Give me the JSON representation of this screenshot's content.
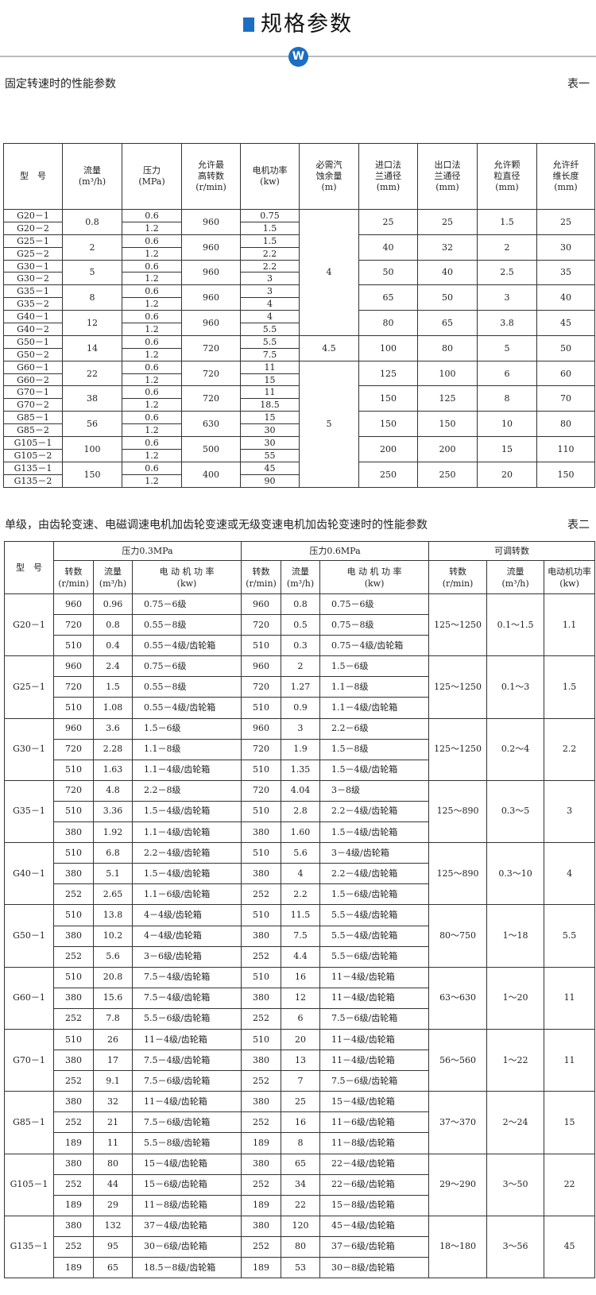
{
  "header": {
    "title": "规格参数",
    "logo": "W",
    "accent": "#1a6fc4"
  },
  "table1": {
    "caption": "固定转速时的性能参数",
    "label": "表一",
    "headers": [
      "型　号",
      "流量\n(m³/h)",
      "压力\n(MPa)",
      "允许最\n高转数\n(r/min)",
      "电机功率\n(kw)",
      "必需汽\n蚀余量\n(m)",
      "进口法\n兰通径\n(mm)",
      "出口法\n兰通径\n(mm)",
      "允许颗\n粒直径\n(mm)",
      "允许纤\n维长度\n(mm)"
    ],
    "groups": [
      {
        "models": [
          "G20－1",
          "G20－2"
        ],
        "flow": "0.8",
        "pressure": [
          "0.6",
          "1.2"
        ],
        "speed": "960",
        "power": [
          "0.75",
          "1.5"
        ],
        "inlet": "25",
        "outlet": "25",
        "particle": "1.5",
        "fiber": "25"
      },
      {
        "models": [
          "G25－1",
          "G25－2"
        ],
        "flow": "2",
        "pressure": [
          "0.6",
          "1.2"
        ],
        "speed": "960",
        "power": [
          "1.5",
          "2.2"
        ],
        "inlet": "40",
        "outlet": "32",
        "particle": "2",
        "fiber": "30"
      },
      {
        "models": [
          "G30－1",
          "G30－2"
        ],
        "flow": "5",
        "pressure": [
          "0.6",
          "1.2"
        ],
        "speed": "960",
        "power": [
          "2.2",
          "3"
        ],
        "inlet": "50",
        "outlet": "40",
        "particle": "2.5",
        "fiber": "35"
      },
      {
        "models": [
          "G35－1",
          "G35－2"
        ],
        "flow": "8",
        "pressure": [
          "0.6",
          "1.2"
        ],
        "speed": "960",
        "power": [
          "3",
          "4"
        ],
        "inlet": "65",
        "outlet": "50",
        "particle": "3",
        "fiber": "40"
      },
      {
        "models": [
          "G40－1",
          "G40－2"
        ],
        "flow": "12",
        "pressure": [
          "0.6",
          "1.2"
        ],
        "speed": "960",
        "power": [
          "4",
          "5.5"
        ],
        "inlet": "80",
        "outlet": "65",
        "particle": "3.8",
        "fiber": "45"
      },
      {
        "models": [
          "G50－1",
          "G50－2"
        ],
        "flow": "14",
        "pressure": [
          "0.6",
          "1.2"
        ],
        "speed": "720",
        "power": [
          "5.5",
          "7.5"
        ],
        "inlet": "100",
        "outlet": "80",
        "particle": "5",
        "fiber": "50"
      },
      {
        "models": [
          "G60－1",
          "G60－2"
        ],
        "flow": "22",
        "pressure": [
          "0.6",
          "1.2"
        ],
        "speed": "720",
        "power": [
          "11",
          "15"
        ],
        "inlet": "125",
        "outlet": "100",
        "particle": "6",
        "fiber": "60"
      },
      {
        "models": [
          "G70－1",
          "G70－2"
        ],
        "flow": "38",
        "pressure": [
          "0.6",
          "1.2"
        ],
        "speed": "720",
        "power": [
          "11",
          "18.5"
        ],
        "inlet": "150",
        "outlet": "125",
        "particle": "8",
        "fiber": "70"
      },
      {
        "models": [
          "G85－1",
          "G85－2"
        ],
        "flow": "56",
        "pressure": [
          "0.6",
          "1.2"
        ],
        "speed": "630",
        "power": [
          "15",
          "30"
        ],
        "inlet": "150",
        "outlet": "150",
        "particle": "10",
        "fiber": "80"
      },
      {
        "models": [
          "G105－1",
          "G105－2"
        ],
        "flow": "100",
        "pressure": [
          "0.6",
          "1.2"
        ],
        "speed": "500",
        "power": [
          "30",
          "55"
        ],
        "inlet": "200",
        "outlet": "200",
        "particle": "15",
        "fiber": "110"
      },
      {
        "models": [
          "G135－1",
          "G135－2"
        ],
        "flow": "150",
        "pressure": [
          "0.6",
          "1.2"
        ],
        "speed": "400",
        "power": [
          "45",
          "90"
        ],
        "inlet": "250",
        "outlet": "250",
        "particle": "20",
        "fiber": "150"
      }
    ],
    "npsh": [
      {
        "value": "4",
        "groups": 5
      },
      {
        "value": "4.5",
        "groups": 1
      },
      {
        "value": "5",
        "groups": 5
      }
    ]
  },
  "table2": {
    "caption": "单级，由齿轮变速、电磁调速电机加齿轮变速或无级变速电机加齿轮变速时的性能参数",
    "label": "表二",
    "model_header": "型　号",
    "group_headers": [
      "压力0.3MPa",
      "压力0.6MPa",
      "可调转数"
    ],
    "sub_headers": [
      "转数\n(r/min)",
      "流量\n(m³/h)",
      "电 动 机 功 率\n(kw)",
      "转数\n(r/min)",
      "流量\n(m³/h)",
      "电 动 机 功 率\n(kw)",
      "转数\n(r/min)",
      "流量\n(m³/h)",
      "电动机功率\n(kw)"
    ],
    "groups": [
      {
        "model": "G20－1",
        "rows": [
          [
            "960",
            "0.96",
            "0.75－6级",
            "960",
            "0.8",
            "0.75－6级"
          ],
          [
            "720",
            "0.8",
            "0.55－8级",
            "720",
            "0.5",
            "0.75－8级"
          ],
          [
            "510",
            "0.4",
            "0.55－4级/齿轮箱",
            "510",
            "0.3",
            "0.75－4级/齿轮箱"
          ]
        ],
        "adj_speed": "125～1250",
        "adj_flow": "0.1～1.5",
        "adj_power": "1.1"
      },
      {
        "model": "G25－1",
        "rows": [
          [
            "960",
            "2.4",
            "0.75－6级",
            "960",
            "2",
            "1.5－6级"
          ],
          [
            "720",
            "1.5",
            "0.55－8级",
            "720",
            "1.27",
            "1.1－8级"
          ],
          [
            "510",
            "1.08",
            "0.55－4级/齿轮箱",
            "510",
            "0.9",
            "1.1－4级/齿轮箱"
          ]
        ],
        "adj_speed": "125～1250",
        "adj_flow": "0.1～3",
        "adj_power": "1.5"
      },
      {
        "model": "G30－1",
        "rows": [
          [
            "960",
            "3.6",
            "1.5－6级",
            "960",
            "3",
            "2.2－6级"
          ],
          [
            "720",
            "2.28",
            "1.1－8级",
            "720",
            "1.9",
            "1.5－8级"
          ],
          [
            "510",
            "1.63",
            "1.1－4级/齿轮箱",
            "510",
            "1.35",
            "1.5－4级/齿轮箱"
          ]
        ],
        "adj_speed": "125～1250",
        "adj_flow": "0.2～4",
        "adj_power": "2.2"
      },
      {
        "model": "G35－1",
        "rows": [
          [
            "720",
            "4.8",
            "2.2－8级",
            "720",
            "4.04",
            "3－8级"
          ],
          [
            "510",
            "3.36",
            "1.5－4级/齿轮箱",
            "510",
            "2.8",
            "2.2－4级/齿轮箱"
          ],
          [
            "380",
            "1.92",
            "1.1－4级/齿轮箱",
            "380",
            "1.60",
            "1.5－4级/齿轮箱"
          ]
        ],
        "adj_speed": "125～890",
        "adj_flow": "0.3～5",
        "adj_power": "3"
      },
      {
        "model": "G40－1",
        "rows": [
          [
            "510",
            "6.8",
            "2.2－4级/齿轮箱",
            "510",
            "5.6",
            "3－4级/齿轮箱"
          ],
          [
            "380",
            "5.1",
            "1.5－4级/齿轮箱",
            "380",
            "4",
            "2.2－4级/齿轮箱"
          ],
          [
            "252",
            "2.65",
            "1.1－6级/齿轮箱",
            "252",
            "2.2",
            "1.5－6级/齿轮箱"
          ]
        ],
        "adj_speed": "125～890",
        "adj_flow": "0.3～10",
        "adj_power": "4"
      },
      {
        "model": "G50－1",
        "rows": [
          [
            "510",
            "13.8",
            "4－4级/齿轮箱",
            "510",
            "11.5",
            "5.5－4级/齿轮箱"
          ],
          [
            "380",
            "10.2",
            "4－4级/齿轮箱",
            "380",
            "7.5",
            "5.5－4级/齿轮箱"
          ],
          [
            "252",
            "5.6",
            "3－6级/齿轮箱",
            "252",
            "4.4",
            "5.5－6级/齿轮箱"
          ]
        ],
        "adj_speed": "80～750",
        "adj_flow": "1～18",
        "adj_power": "5.5"
      },
      {
        "model": "G60－1",
        "rows": [
          [
            "510",
            "20.8",
            "7.5－4级/齿轮箱",
            "510",
            "16",
            "11－4级/齿轮箱"
          ],
          [
            "380",
            "15.6",
            "7.5－4级/齿轮箱",
            "380",
            "12",
            "11－4级/齿轮箱"
          ],
          [
            "252",
            "7.8",
            "5.5－6级/齿轮箱",
            "252",
            "6",
            "7.5－6级/齿轮箱"
          ]
        ],
        "adj_speed": "63～630",
        "adj_flow": "1～20",
        "adj_power": "11"
      },
      {
        "model": "G70－1",
        "rows": [
          [
            "510",
            "26",
            "11－4级/齿轮箱",
            "510",
            "20",
            "11－4级/齿轮箱"
          ],
          [
            "380",
            "17",
            "7.5－4级/齿轮箱",
            "380",
            "13",
            "11－4级/齿轮箱"
          ],
          [
            "252",
            "9.1",
            "7.5－6级/齿轮箱",
            "252",
            "7",
            "7.5－6级/齿轮箱"
          ]
        ],
        "adj_speed": "56～560",
        "adj_flow": "1～22",
        "adj_power": "11"
      },
      {
        "model": "G85－1",
        "rows": [
          [
            "380",
            "32",
            "11－4级/齿轮箱",
            "380",
            "25",
            "15－4级/齿轮箱"
          ],
          [
            "252",
            "21",
            "7.5－6级/齿轮箱",
            "252",
            "16",
            "11－6级/齿轮箱"
          ],
          [
            "189",
            "11",
            "5.5－8级/齿轮箱",
            "189",
            "8",
            "11－8级/齿轮箱"
          ]
        ],
        "adj_speed": "37～370",
        "adj_flow": "2～24",
        "adj_power": "15"
      },
      {
        "model": "G105－1",
        "rows": [
          [
            "380",
            "80",
            "15－4级/齿轮箱",
            "380",
            "65",
            "22－4级/齿轮箱"
          ],
          [
            "252",
            "44",
            "15－6级/齿轮箱",
            "252",
            "34",
            "22－6级/齿轮箱"
          ],
          [
            "189",
            "29",
            "11－8级/齿轮箱",
            "189",
            "22",
            "15－8级/齿轮箱"
          ]
        ],
        "adj_speed": "29～290",
        "adj_flow": "3～50",
        "adj_power": "22"
      },
      {
        "model": "G135－1",
        "rows": [
          [
            "380",
            "132",
            "37－4级/齿轮箱",
            "380",
            "120",
            "45－4级/齿轮箱"
          ],
          [
            "252",
            "95",
            "30－6级/齿轮箱",
            "252",
            "80",
            "37－6级/齿轮箱"
          ],
          [
            "189",
            "65",
            "18.5－8级/齿轮箱",
            "189",
            "53",
            "30－8级/齿轮箱"
          ]
        ],
        "adj_speed": "18～180",
        "adj_flow": "3～56",
        "adj_power": "45"
      }
    ]
  }
}
